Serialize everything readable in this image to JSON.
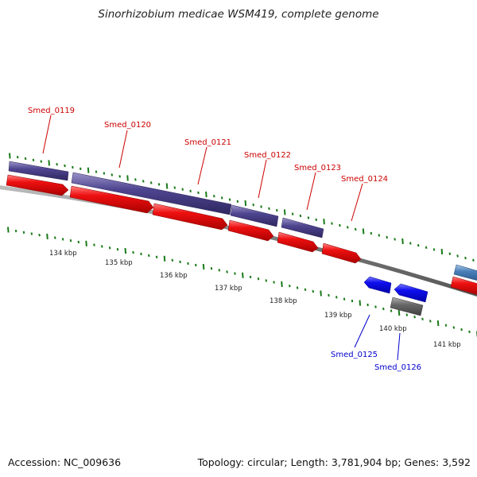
{
  "title": "Sinorhizobium medicae WSM419, complete genome",
  "footer": {
    "accession": "Accession: NC_009636",
    "summary": "Topology: circular; Length: 3,781,904 bp; Genes: 3,592"
  },
  "colors": {
    "forward_gene_label": "#cc0000",
    "reverse_gene_label": "#0000cc",
    "cds_forward": "#ee0000",
    "cds_reverse": "#0000ee",
    "gene_bar": "#4a3f8a",
    "pseudo_gene": "#606060",
    "tick": "#1a7a1a",
    "backbone": "#888888"
  },
  "scale_labels": [
    "134 kbp",
    "135 kbp",
    "136 kbp",
    "137 kbp",
    "138 kbp",
    "139 kbp",
    "140 kbp",
    "141 kbp"
  ],
  "genes": {
    "forward": [
      "Smed_0119",
      "Smed_0120",
      "Smed_0121",
      "Smed_0122",
      "Smed_0123",
      "Smed_0124"
    ],
    "reverse": [
      "Smed_0125",
      "Smed_0126"
    ]
  }
}
